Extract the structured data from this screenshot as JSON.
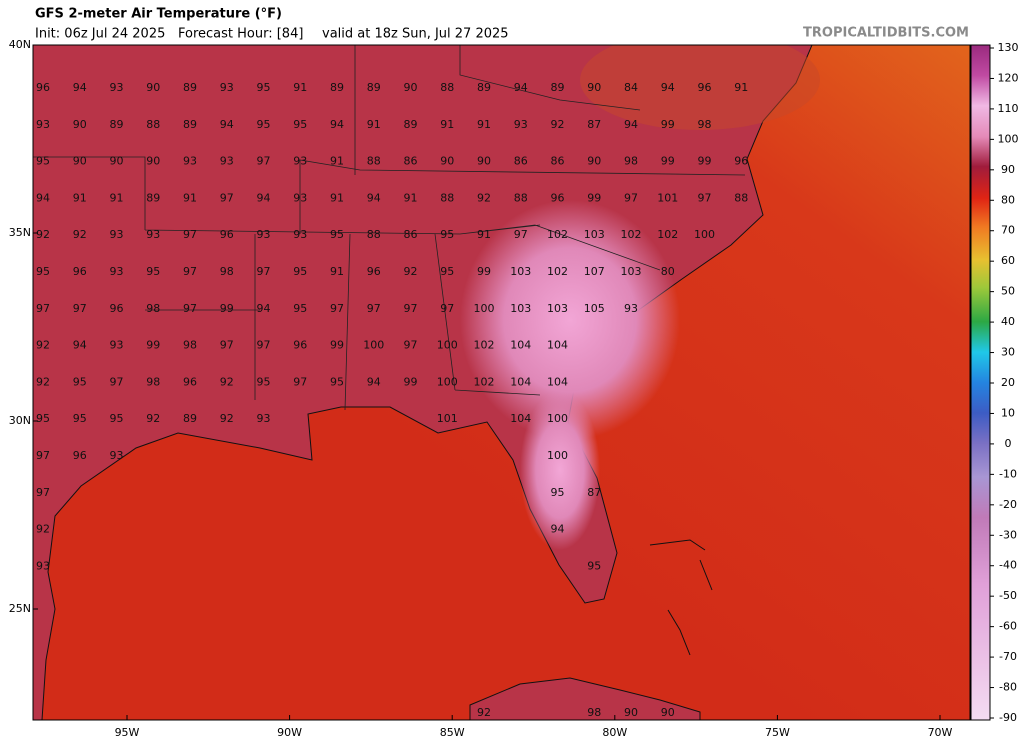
{
  "header": {
    "title": "GFS 2-meter Air Temperature (°F)",
    "init": "Init: 06z Jul 24 2025",
    "forecast_hour": "Forecast Hour: [84]",
    "valid": "valid at 18z Sun, Jul 27 2025",
    "brand": "TROPICALTIDBITS.COM"
  },
  "map": {
    "lat_labels": [
      "40N",
      "35N",
      "30N",
      "25N"
    ],
    "lon_labels": [
      "95W",
      "90W",
      "85W",
      "80W",
      "75W",
      "70W"
    ],
    "rows": [
      [
        96,
        94,
        93,
        90,
        89,
        93,
        95,
        91,
        89,
        89,
        90,
        88,
        89,
        94,
        89,
        90,
        84,
        94,
        96,
        91
      ],
      [
        93,
        90,
        89,
        88,
        89,
        94,
        95,
        95,
        94,
        91,
        89,
        91,
        91,
        93,
        92,
        87,
        94,
        99,
        98
      ],
      [
        95,
        90,
        90,
        90,
        93,
        93,
        97,
        93,
        91,
        88,
        86,
        90,
        90,
        86,
        86,
        90,
        98,
        99,
        99,
        96
      ],
      [
        94,
        91,
        91,
        89,
        91,
        97,
        94,
        93,
        91,
        94,
        91,
        88,
        92,
        88,
        96,
        99,
        97,
        101,
        97,
        88
      ],
      [
        92,
        92,
        93,
        93,
        97,
        96,
        93,
        93,
        95,
        88,
        86,
        95,
        91,
        97,
        102,
        103,
        102,
        102,
        100
      ],
      [
        95,
        96,
        93,
        95,
        97,
        98,
        97,
        95,
        91,
        96,
        92,
        95,
        99,
        103,
        102,
        107,
        103,
        80
      ],
      [
        97,
        97,
        96,
        98,
        97,
        99,
        94,
        95,
        97,
        97,
        97,
        97,
        100,
        103,
        103,
        105,
        93
      ],
      [
        92,
        94,
        93,
        99,
        98,
        97,
        97,
        96,
        99,
        100,
        97,
        100,
        102,
        104,
        104
      ],
      [
        92,
        95,
        97,
        98,
        96,
        92,
        95,
        97,
        95,
        94,
        99,
        100,
        102,
        104,
        104
      ],
      [
        95,
        95,
        95,
        92,
        89,
        92,
        93,
        null,
        null,
        null,
        null,
        101,
        null,
        104,
        100
      ],
      [
        97,
        96,
        93,
        null,
        null,
        null,
        null,
        null,
        null,
        null,
        null,
        null,
        null,
        null,
        100
      ],
      [
        97,
        null,
        null,
        null,
        null,
        null,
        null,
        null,
        null,
        null,
        null,
        null,
        null,
        null,
        95,
        87
      ],
      [
        92,
        null,
        null,
        null,
        null,
        null,
        null,
        null,
        null,
        null,
        null,
        null,
        null,
        null,
        94
      ],
      [
        93,
        null,
        null,
        null,
        null,
        null,
        null,
        null,
        null,
        null,
        null,
        null,
        null,
        null,
        null,
        95
      ],
      [
        null,
        null,
        null,
        null,
        null,
        null,
        null,
        null,
        null,
        null,
        null,
        null,
        92,
        null,
        null,
        98,
        90,
        90
      ]
    ]
  },
  "colorbar": {
    "ticks": [
      130,
      120,
      110,
      100,
      90,
      80,
      70,
      60,
      50,
      40,
      30,
      20,
      10,
      0,
      -10,
      -20,
      -30,
      -40,
      -50,
      -60,
      -70,
      -80,
      -90
    ]
  }
}
